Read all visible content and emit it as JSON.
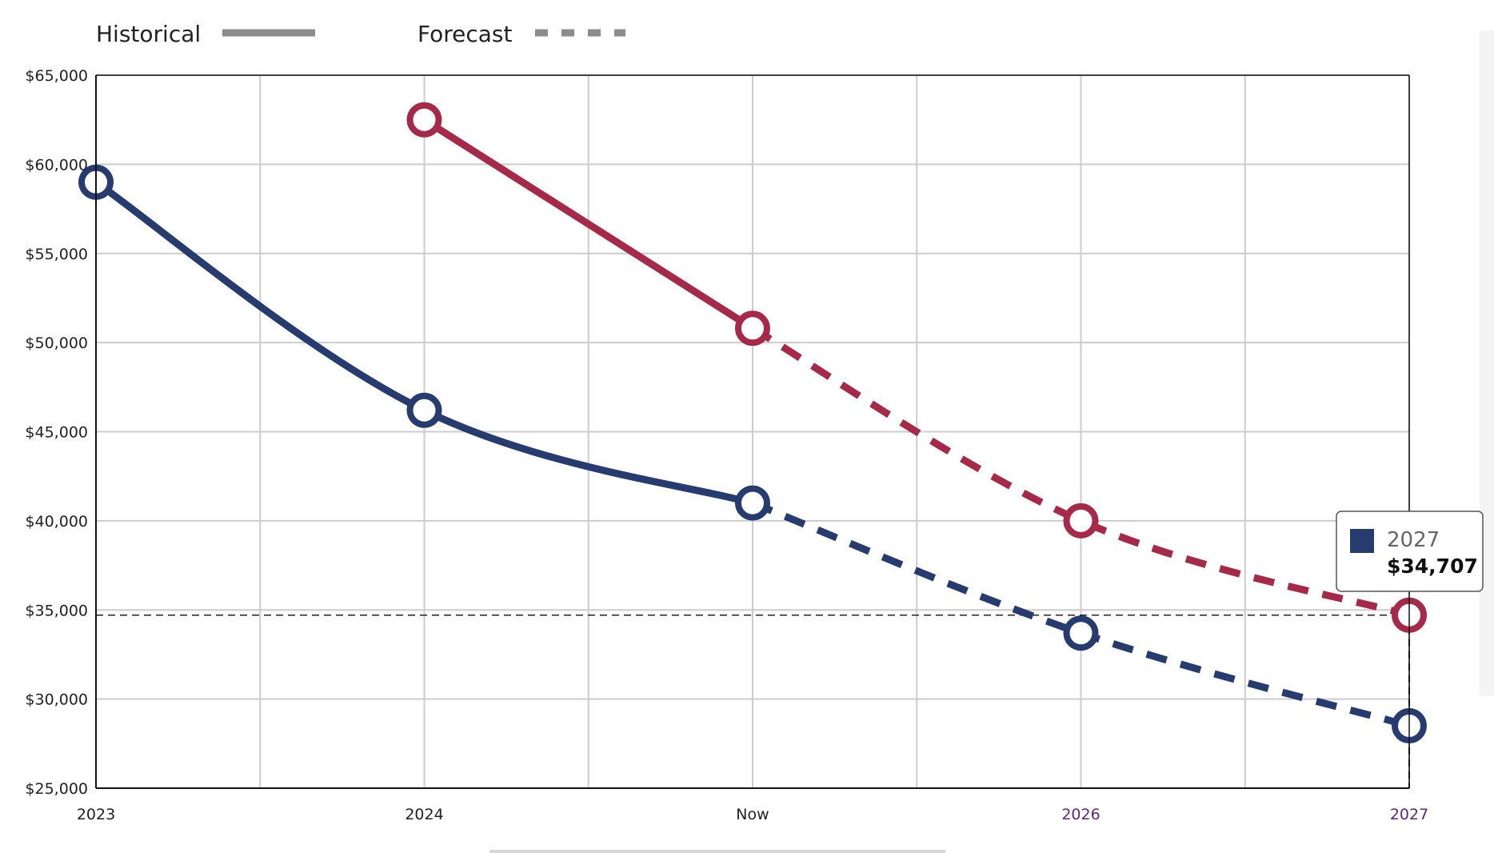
{
  "legend": {
    "historical_label": "Historical",
    "forecast_label": "Forecast",
    "swatch_color": "#8c8c8c"
  },
  "tooltip": {
    "year": "2027",
    "value": "$34,707",
    "swatch_color": "#263b6f"
  },
  "chart_data": {
    "type": "line",
    "title": "",
    "xlabel": "",
    "ylabel": "",
    "categories": [
      "2023",
      "2024",
      "Now",
      "2026",
      "2027"
    ],
    "forecast_start_index": 2,
    "ylim": [
      25000,
      65000
    ],
    "y_ticks": [
      25000,
      30000,
      35000,
      40000,
      45000,
      50000,
      55000,
      60000,
      65000
    ],
    "y_tick_labels": [
      "$25,000",
      "$30,000",
      "$35,000",
      "$40,000",
      "$45,000",
      "$50,000",
      "$55,000",
      "$60,000",
      "$65,000"
    ],
    "grid": true,
    "series": [
      {
        "color": "#263b6f",
        "values": [
          59000,
          46200,
          41000,
          33700,
          28500
        ]
      },
      {
        "color": "#a8284a",
        "values": [
          null,
          62500,
          50800,
          40000,
          34707
        ]
      }
    ],
    "reference_line": {
      "y": 34707,
      "x_category": "2027"
    },
    "colors": {
      "grid": "#cccccc",
      "axis": "#111111",
      "forecast_tick": "#5a2a7a"
    }
  }
}
